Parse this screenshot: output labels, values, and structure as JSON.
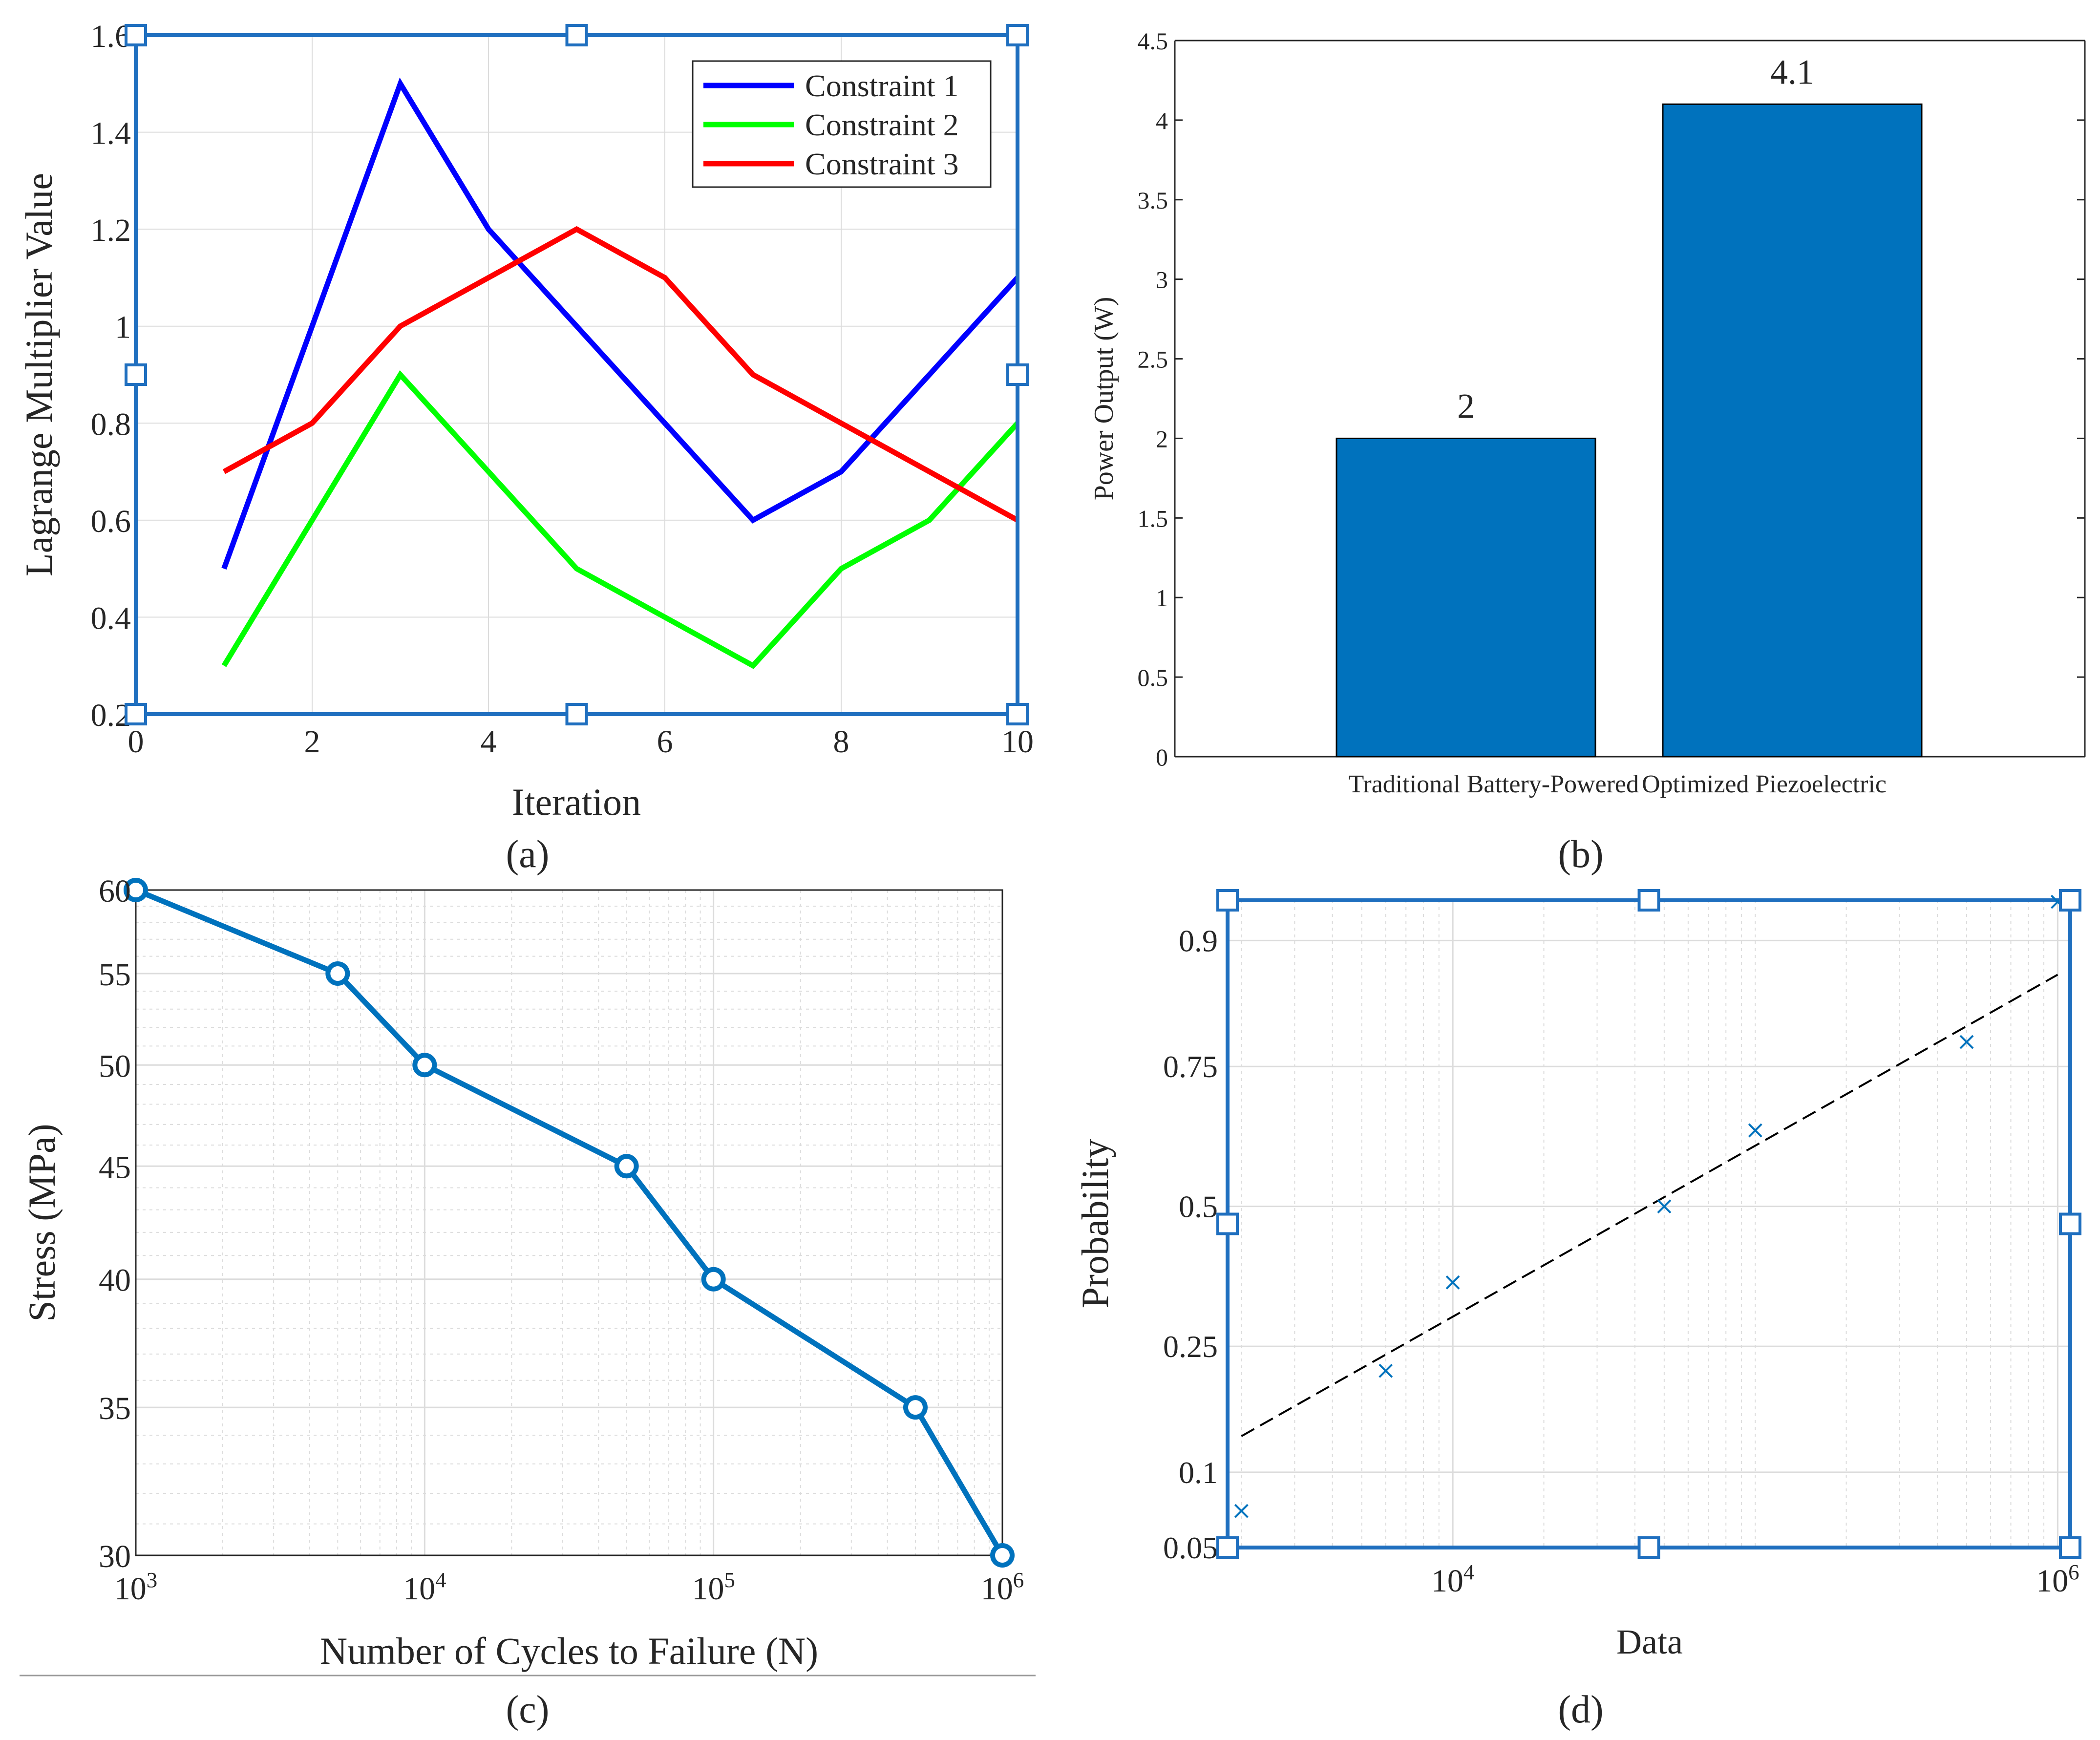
{
  "panels": {
    "a": {
      "caption": "(a)"
    },
    "b": {
      "caption": "(b)"
    },
    "c": {
      "caption": "(c)"
    },
    "d": {
      "caption": "(d)"
    }
  },
  "colors": {
    "constraint1": "#0000ff",
    "constraint2": "#00ff00",
    "constraint3": "#ff0000",
    "matlab_blue": "#0072bd",
    "axis": "#262626",
    "grid": "#dcdcdc",
    "handle": "#1f6fbf"
  },
  "chart_data": [
    {
      "id": "a",
      "type": "line",
      "title": "",
      "xlabel": "Iteration",
      "ylabel": "Lagrange Multiplier Value",
      "xlim": [
        0,
        10
      ],
      "ylim": [
        0.2,
        1.6
      ],
      "xticks": [
        0,
        2,
        4,
        6,
        8,
        10
      ],
      "xtick_labels": [
        "0",
        "2",
        "4",
        "6",
        "8",
        "10"
      ],
      "yticks": [
        0.2,
        0.4,
        0.6,
        0.8,
        1.0,
        1.2,
        1.4,
        1.6
      ],
      "ytick_labels": [
        "0.2",
        "0.4",
        "0.6",
        "0.8",
        "1",
        "1.2",
        "1.4",
        "1.6"
      ],
      "grid": true,
      "legend": "top-right",
      "selection_handles": true,
      "x": [
        1,
        2,
        3,
        4,
        5,
        6,
        7,
        8,
        9,
        10
      ],
      "series": [
        {
          "name": "Constraint 1",
          "color": "#0000ff",
          "values": [
            0.5,
            1.0,
            1.5,
            1.2,
            1.0,
            0.8,
            0.6,
            0.7,
            0.9,
            1.1
          ]
        },
        {
          "name": "Constraint 2",
          "color": "#00ff00",
          "values": [
            0.3,
            0.6,
            0.9,
            0.7,
            0.5,
            0.4,
            0.3,
            0.5,
            0.6,
            0.8
          ]
        },
        {
          "name": "Constraint 3",
          "color": "#ff0000",
          "values": [
            0.7,
            0.8,
            1.0,
            1.1,
            1.2,
            1.1,
            0.9,
            0.8,
            0.7,
            0.6
          ]
        }
      ]
    },
    {
      "id": "b",
      "type": "bar",
      "title": "",
      "xlabel": "",
      "ylabel": "Power Output (W)",
      "categories": [
        "Traditional Battery-Powered",
        "Optimized Piezoelectric"
      ],
      "values": [
        2,
        4.1
      ],
      "data_labels": [
        "2",
        "4.1"
      ],
      "ylim": [
        0,
        4.5
      ],
      "yticks": [
        0,
        0.5,
        1,
        1.5,
        2,
        2.5,
        3,
        3.5,
        4,
        4.5
      ],
      "ytick_labels": [
        "0",
        "0.5",
        "1",
        "1.5",
        "2",
        "2.5",
        "3",
        "3.5",
        "4",
        "4.5"
      ],
      "grid": false,
      "color": "#0072bd"
    },
    {
      "id": "c",
      "type": "line",
      "title": "",
      "xlabel": "Number of Cycles to Failure (N)",
      "ylabel": "Stress (MPa)",
      "xscale": "log",
      "yscale": "log",
      "xlim": [
        1000,
        1000000
      ],
      "ylim": [
        30,
        60
      ],
      "xticks": [
        1000,
        10000,
        100000,
        1000000
      ],
      "xtick_labels": [
        {
          "base": "10",
          "exp": "3"
        },
        {
          "base": "10",
          "exp": "4"
        },
        {
          "base": "10",
          "exp": "5"
        },
        {
          "base": "10",
          "exp": "6"
        }
      ],
      "yticks": [
        30,
        35,
        40,
        45,
        50,
        55,
        60
      ],
      "ytick_labels": [
        "30",
        "35",
        "40",
        "45",
        "50",
        "55",
        "60"
      ],
      "grid": true,
      "marker": "circle",
      "series": [
        {
          "color": "#0072bd",
          "x": [
            1000,
            5000,
            10000,
            50000,
            100000,
            500000,
            1000000
          ],
          "values": [
            60,
            55,
            50,
            45,
            40,
            35,
            30
          ]
        }
      ]
    },
    {
      "id": "d",
      "type": "scatter",
      "title": "",
      "xlabel": "Data",
      "ylabel": "Probability",
      "xscale": "log",
      "yscale": "normal-probability",
      "xlim": [
        1800,
        1100000
      ],
      "ylim": [
        0.05,
        0.93
      ],
      "xticks": [
        10000,
        1000000
      ],
      "xtick_labels": [
        {
          "base": "10",
          "exp": "4"
        },
        {
          "base": "10",
          "exp": "6"
        }
      ],
      "yticks": [
        0.05,
        0.1,
        0.25,
        0.5,
        0.75,
        0.9
      ],
      "ytick_labels": [
        "0.05",
        "0.1",
        "0.25",
        "0.5",
        "0.75",
        "0.9"
      ],
      "grid": true,
      "marker": "x",
      "selection_handles": true,
      "points": {
        "x": [
          2000,
          6000,
          10000,
          50000,
          100000,
          500000,
          1000000
        ],
        "y": [
          0.071,
          0.214,
          0.357,
          0.5,
          0.643,
          0.786,
          0.929
        ]
      },
      "fit_line": {
        "style": "dashed",
        "x": [
          2000,
          1000000
        ],
        "y": [
          0.134,
          0.868
        ]
      }
    }
  ]
}
